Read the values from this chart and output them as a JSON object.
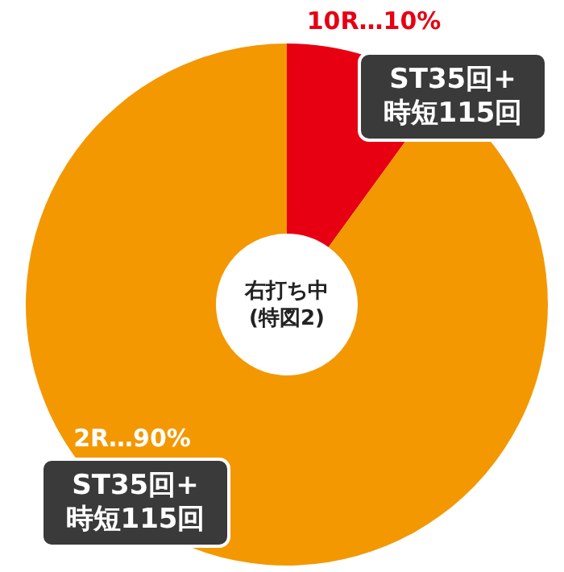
{
  "chart_data": {
    "type": "donut",
    "categories": [
      "10R…10%",
      "2R…90%"
    ],
    "values": [
      10,
      90
    ],
    "colors": [
      "#e60012",
      "#f39800"
    ],
    "annotations": [
      "右打ち中\n(特図2)",
      "ST35回+\n時短115回",
      "ST35回+\n時短115回"
    ],
    "legend": false
  }
}
